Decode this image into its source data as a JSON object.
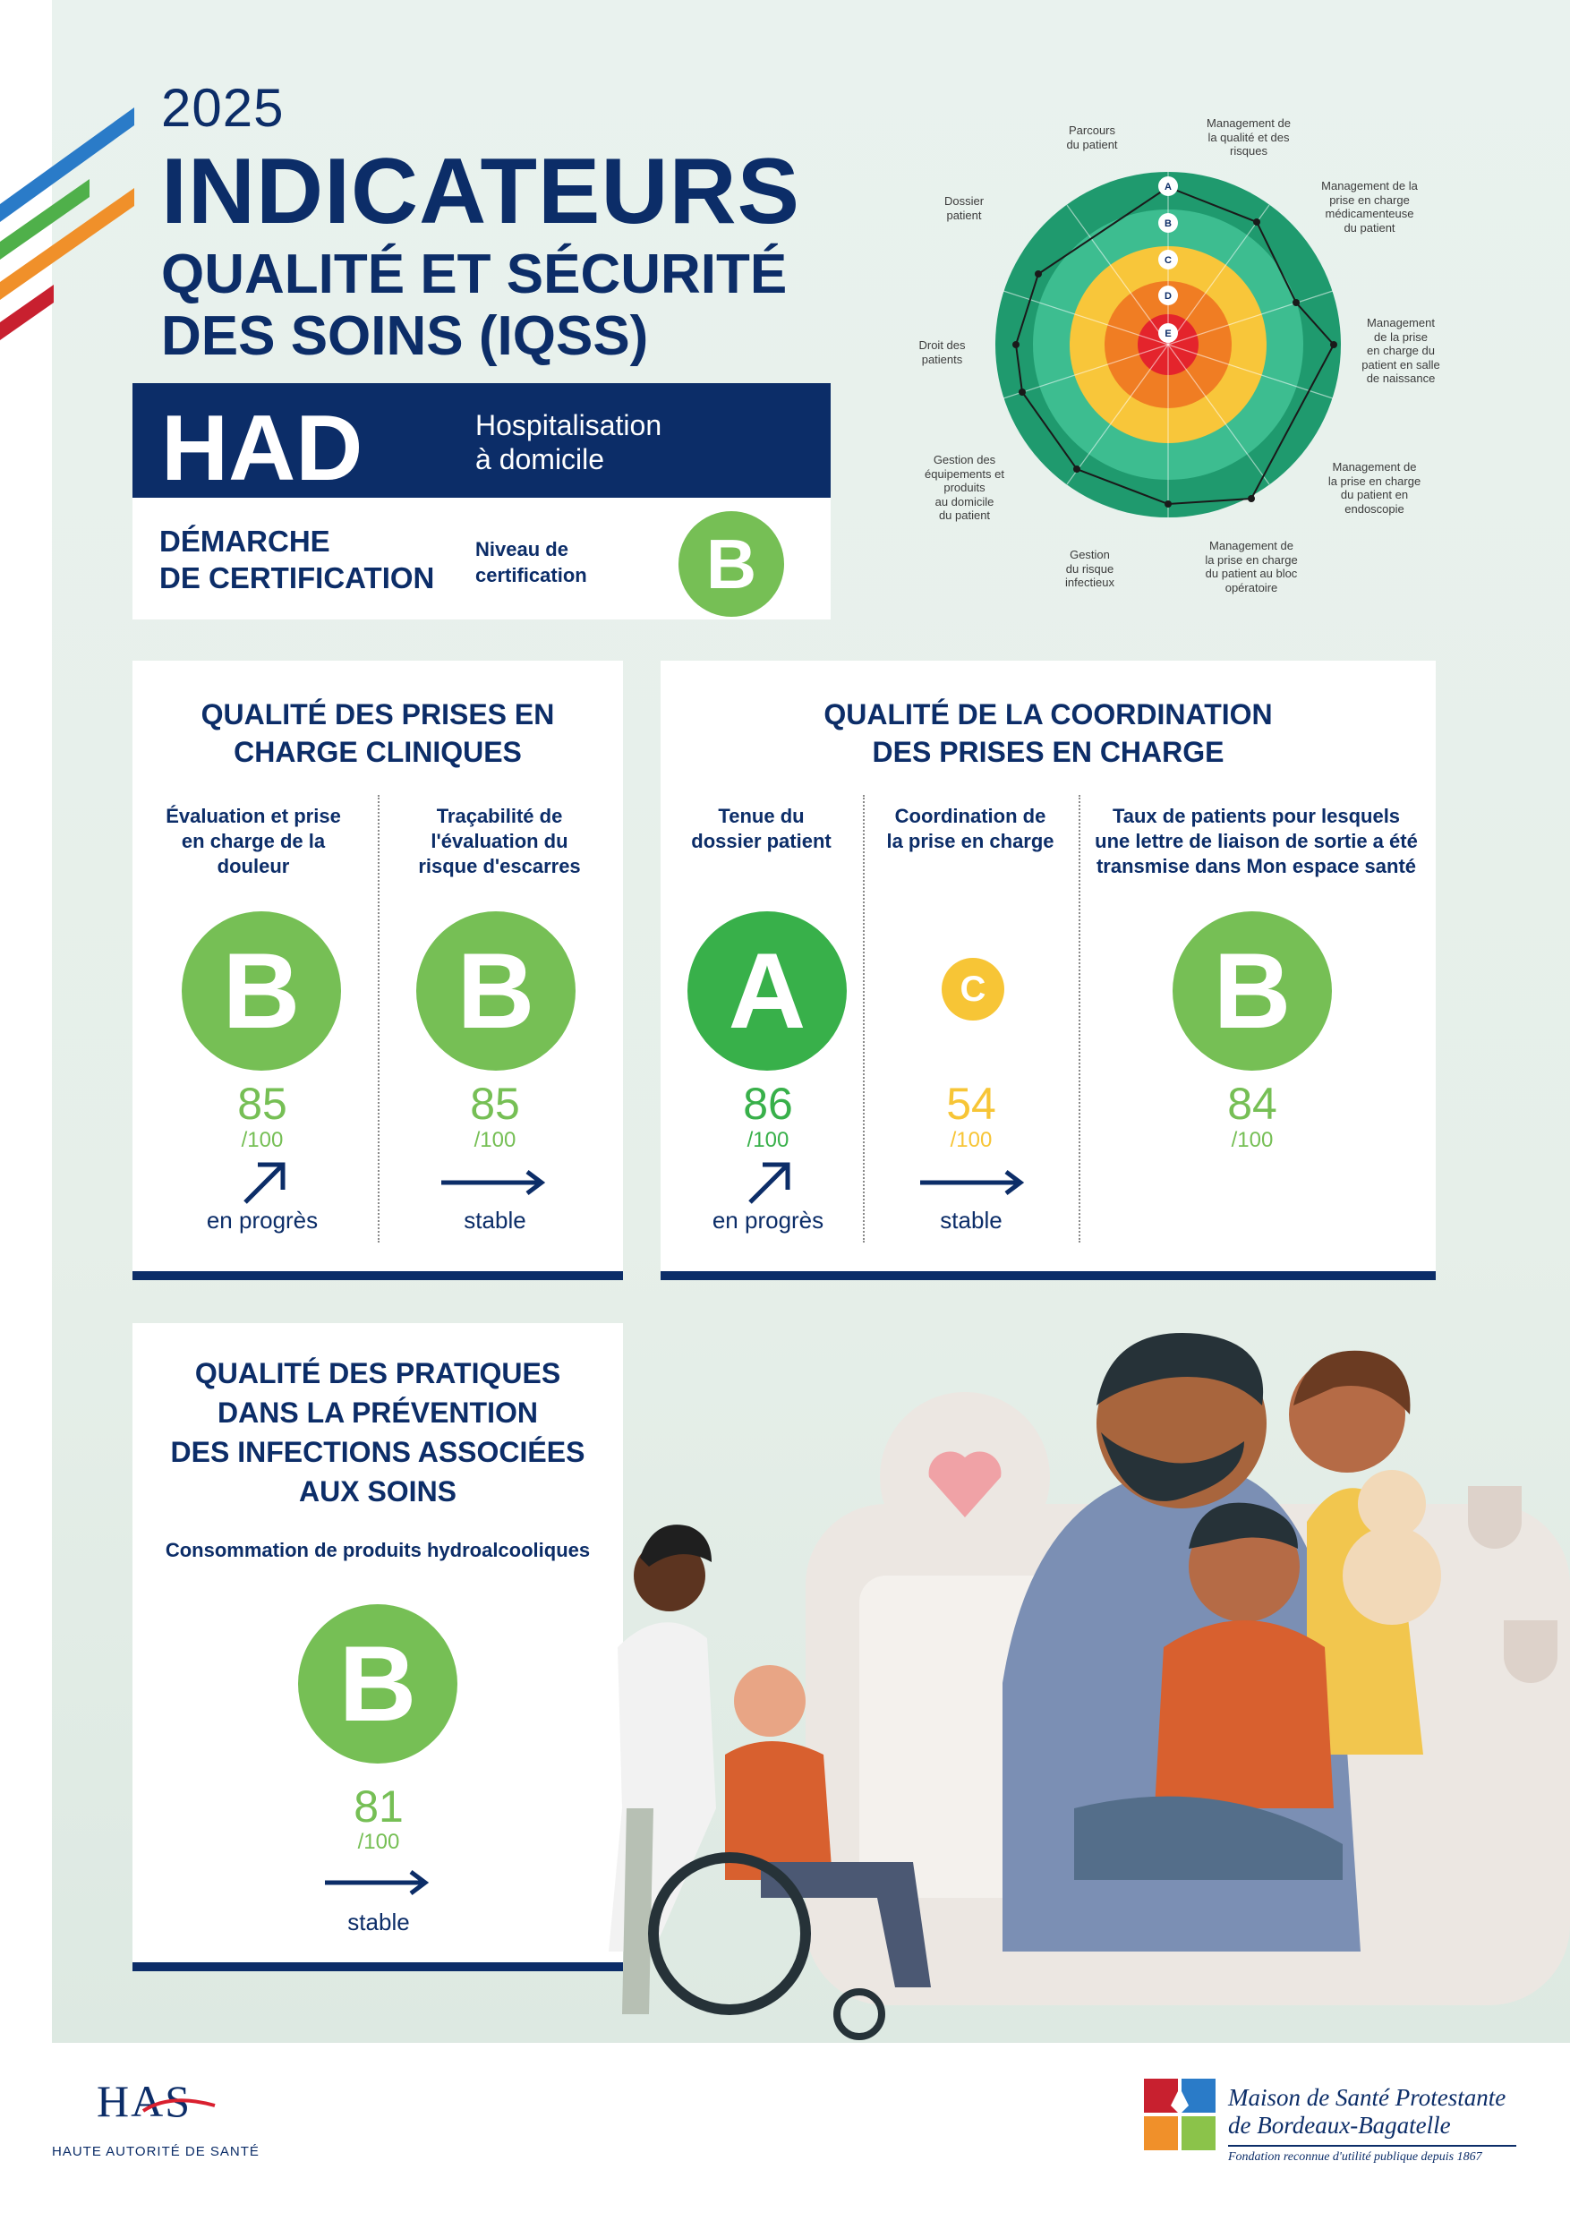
{
  "colors": {
    "navy": "#0c2d68",
    "green_b": "#76bf55",
    "green_a": "#38b04a",
    "yellow_c": "#f7c536"
  },
  "header": {
    "year": "2025",
    "title": "INDICATEURS",
    "subtitle_line1": "QUALITÉ ET SÉCURITÉ",
    "subtitle_line2": "DES SOINS (IQSS)",
    "had": "HAD",
    "had_sub_line1": "Hospitalisation",
    "had_sub_line2": "à domicile"
  },
  "certification": {
    "title_line1": "DÉMARCHE",
    "title_line2": "DE CERTIFICATION",
    "niveau_line1": "Niveau de",
    "niveau_line2": "certification",
    "grade": "B"
  },
  "radar": {
    "rings": [
      "A",
      "B",
      "C",
      "D",
      "E"
    ],
    "axes": [
      "Parcours du patient",
      "Management de la qualité et des risques",
      "Management de la prise en charge médicamenteuse du patient",
      "Management de la prise en charge du patient en salle de naissance",
      "Management de la prise en charge du patient en endoscopie",
      "Management de la prise en charge du patient au bloc opératoire",
      "Gestion du risque infectieux",
      "Gestion des équipements et produits au domicile du patient",
      "Droit des patients",
      "Dossier patient"
    ],
    "labels": {
      "parcours": [
        "Parcours",
        "du patient"
      ],
      "qualite": [
        "Management de",
        "la qualité et des",
        "risques"
      ],
      "medic": [
        "Management de la",
        "prise en charge",
        "médicamenteuse",
        "du patient"
      ],
      "naissance": [
        "Management",
        "de la prise",
        "en charge du",
        "patient en salle",
        "de naissance"
      ],
      "endo": [
        "Management de",
        "la prise en charge",
        "du patient en",
        "endoscopie"
      ],
      "bloc": [
        "Management de",
        "la prise en charge",
        "du patient au bloc",
        "opératoire"
      ],
      "infect": [
        "Gestion",
        "du risque",
        "infectieux"
      ],
      "equip": [
        "Gestion des",
        "équipements et",
        "produits",
        "au domicile",
        "du patient"
      ],
      "droit": [
        "Droit des",
        "patients"
      ],
      "dossier": [
        "Dossier",
        "patient"
      ]
    }
  },
  "clinique": {
    "title_line1": "QUALITÉ DES PRISES EN",
    "title_line2": "CHARGE CLINIQUES",
    "items": [
      {
        "label1": "Évaluation et prise",
        "label2": "en charge de la",
        "label3": "douleur",
        "grade": "B",
        "score": "85",
        "denom": "/100",
        "trend": "en progrès"
      },
      {
        "label1": "Traçabilité de",
        "label2": "l'évaluation du",
        "label3": "risque d'escarres",
        "grade": "B",
        "score": "85",
        "denom": "/100",
        "trend": "stable"
      }
    ]
  },
  "coordination": {
    "title_line1": "QUALITÉ DE LA COORDINATION",
    "title_line2": "DES PRISES EN CHARGE",
    "items": [
      {
        "label1": "Tenue du",
        "label2": "dossier patient",
        "grade": "A",
        "score": "86",
        "denom": "/100",
        "trend": "en progrès"
      },
      {
        "label1": "Coordination de",
        "label2": "la prise en charge",
        "grade": "C",
        "score": "54",
        "denom": "/100",
        "trend": "stable"
      },
      {
        "label1": "Taux de patients pour lesquels",
        "label2": "une lettre de liaison de sortie a été",
        "label3": "transmise dans Mon espace santé",
        "grade": "B",
        "score": "84",
        "denom": "/100"
      }
    ]
  },
  "prevention": {
    "title_line1": "QUALITÉ DES PRATIQUES",
    "title_line2": "DANS LA PRÉVENTION",
    "title_line3": "DES INFECTIONS ASSOCIÉES",
    "title_line4": "AUX SOINS",
    "label": "Consommation de produits hydroalcooliques",
    "grade": "B",
    "score": "81",
    "denom": "/100",
    "trend": "stable"
  },
  "footer": {
    "has_logo": "HAS",
    "has_name": "HAUTE AUTORITÉ DE SANTÉ",
    "org_line1": "Maison de Santé Protestante",
    "org_line2": "de Bordeaux-Bagatelle",
    "org_tag": "Fondation reconnue d'utilité publique depuis 1867"
  }
}
